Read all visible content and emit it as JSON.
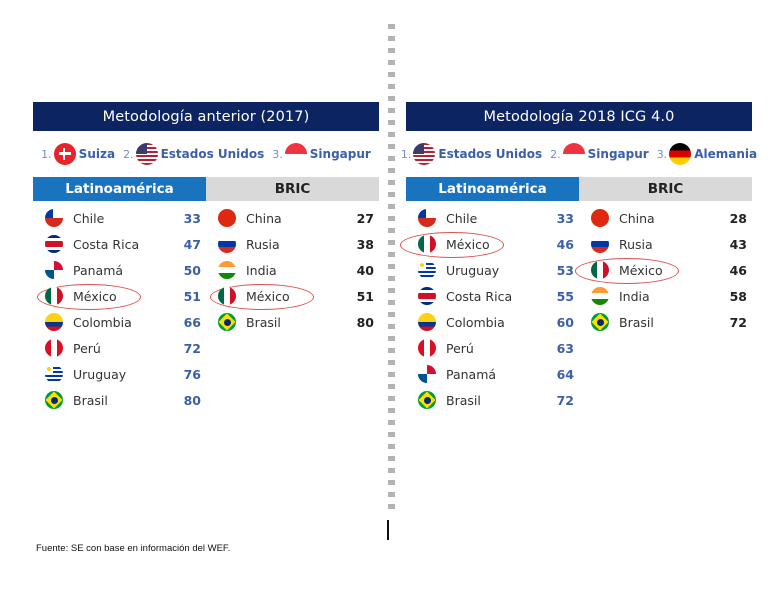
{
  "panels": [
    {
      "title": "Metodología anterior (2017)",
      "top3": [
        {
          "rank": "1.",
          "country": "Suiza",
          "flag": "suiza"
        },
        {
          "rank": "2.",
          "country": "Estados Unidos",
          "flag": "usa"
        },
        {
          "rank": "3.",
          "country": "Singapur",
          "flag": "singapur"
        }
      ],
      "tabs": {
        "latam": "Latinoamérica",
        "bric": "BRIC"
      },
      "latam": [
        {
          "country": "Chile",
          "score": "33",
          "flag": "chile"
        },
        {
          "country": "Costa Rica",
          "score": "47",
          "flag": "costarica"
        },
        {
          "country": "Panamá",
          "score": "50",
          "flag": "panama"
        },
        {
          "country": "México",
          "score": "51",
          "flag": "mexico",
          "highlight": true
        },
        {
          "country": "Colombia",
          "score": "66",
          "flag": "colombia"
        },
        {
          "country": "Perú",
          "score": "72",
          "flag": "peru"
        },
        {
          "country": "Uruguay",
          "score": "76",
          "flag": "uruguay"
        },
        {
          "country": "Brasil",
          "score": "80",
          "flag": "brasil"
        }
      ],
      "bric": [
        {
          "country": "China",
          "score": "27",
          "flag": "china"
        },
        {
          "country": "Rusia",
          "score": "38",
          "flag": "rusia"
        },
        {
          "country": "India",
          "score": "40",
          "flag": "india"
        },
        {
          "country": "México",
          "score": "51",
          "flag": "mexico",
          "highlight": true
        },
        {
          "country": "Brasil",
          "score": "80",
          "flag": "brasil"
        }
      ]
    },
    {
      "title": "Metodología 2018 ICG 4.0",
      "top3": [
        {
          "rank": "1.",
          "country": "Estados Unidos",
          "flag": "usa"
        },
        {
          "rank": "2.",
          "country": "Singapur",
          "flag": "singapur"
        },
        {
          "rank": "3.",
          "country": "Alemania",
          "flag": "alemania"
        }
      ],
      "tabs": {
        "latam": "Latinoamérica",
        "bric": "BRIC"
      },
      "latam": [
        {
          "country": "Chile",
          "score": "33",
          "flag": "chile"
        },
        {
          "country": "México",
          "score": "46",
          "flag": "mexico",
          "highlight": true
        },
        {
          "country": "Uruguay",
          "score": "53",
          "flag": "uruguay"
        },
        {
          "country": "Costa Rica",
          "score": "55",
          "flag": "costarica"
        },
        {
          "country": "Colombia",
          "score": "60",
          "flag": "colombia"
        },
        {
          "country": "Perú",
          "score": "63",
          "flag": "peru"
        },
        {
          "country": "Panamá",
          "score": "64",
          "flag": "panama"
        },
        {
          "country": "Brasil",
          "score": "72",
          "flag": "brasil"
        }
      ],
      "bric": [
        {
          "country": "China",
          "score": "28",
          "flag": "china"
        },
        {
          "country": "Rusia",
          "score": "43",
          "flag": "rusia"
        },
        {
          "country": "México",
          "score": "46",
          "flag": "mexico",
          "highlight": true
        },
        {
          "country": "India",
          "score": "58",
          "flag": "india"
        },
        {
          "country": "Brasil",
          "score": "72",
          "flag": "brasil"
        }
      ]
    }
  ],
  "colors": {
    "title_bg": "#0c2461",
    "latam_tab_bg": "#1a73bf",
    "bric_tab_bg": "#d9d9d9",
    "latam_score": "#3b5fa8",
    "highlight_ellipse": "#d9534f"
  },
  "source": "Fuente: SE con base en información del WEF."
}
